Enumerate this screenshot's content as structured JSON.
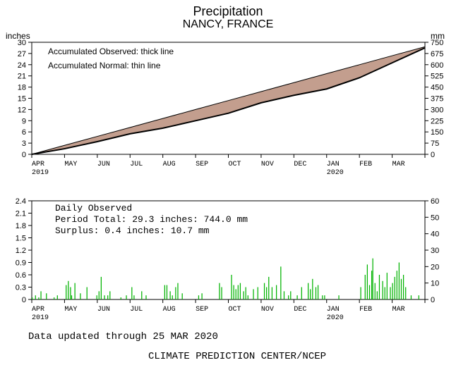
{
  "title": "Precipitation",
  "subtitle": "NANCY, FRANCE",
  "top_chart": {
    "type": "area",
    "left_axis_label": "inches",
    "right_axis_label": "mm",
    "left_ticks": [
      0,
      3,
      6,
      9,
      12,
      15,
      18,
      21,
      24,
      27,
      30
    ],
    "right_ticks": [
      0,
      75,
      150,
      225,
      300,
      375,
      450,
      525,
      600,
      675,
      750
    ],
    "x_labels": [
      "APR",
      "MAY",
      "JUN",
      "JUL",
      "AUG",
      "SEP",
      "OCT",
      "NOV",
      "DEC",
      "JAN",
      "FEB",
      "MAR"
    ],
    "x_year_labels": {
      "0": "2019",
      "9": "2020"
    },
    "legend_thick": "Accumulated Observed: thick line",
    "legend_thin": "Accumulated Normal: thin line",
    "normal_line": [
      0,
      2.4,
      4.8,
      7.2,
      9.6,
      12,
      14.4,
      16.8,
      19.2,
      21.6,
      24,
      26.4,
      28.8
    ],
    "observed_line": [
      0,
      1.5,
      3.4,
      5.5,
      7.0,
      9.0,
      11.0,
      13.8,
      15.8,
      17.5,
      20.5,
      24.5,
      28.5,
      29.3
    ],
    "deficit_fill": "#c39e8e",
    "surplus_fill": "#90c78a",
    "normal_color": "#000000",
    "observed_color": "#000000",
    "observed_width": 2,
    "normal_width": 1,
    "background": "#ffffff",
    "border_color": "#000000"
  },
  "bottom_chart": {
    "type": "bar",
    "left_axis_label_ticks": [
      0,
      0.3,
      0.6,
      0.9,
      1.2,
      1.5,
      1.8,
      2.1,
      2.4
    ],
    "right_axis_label_ticks": [
      0,
      10,
      20,
      30,
      40,
      50,
      60
    ],
    "x_labels": [
      "APR",
      "MAY",
      "JUN",
      "JUL",
      "AUG",
      "SEP",
      "OCT",
      "NOV",
      "DEC",
      "JAN",
      "FEB",
      "MAR"
    ],
    "x_year_labels": {
      "0": "2019",
      "9": "2020"
    },
    "annot_header": "Daily Observed",
    "annot_line1": "Period Total:   29.3 inches:   744.0 mm",
    "annot_line2": "Surplus:     0.4 inches:    10.7 mm",
    "bar_color": "#00b300",
    "background": "#ffffff",
    "border_color": "#000000",
    "daily_values": [
      0.05,
      0,
      0,
      0.1,
      0,
      0,
      0.05,
      0,
      0.2,
      0,
      0,
      0,
      0,
      0.15,
      0,
      0,
      0,
      0,
      0,
      0,
      0.05,
      0,
      0,
      0.1,
      0,
      0,
      0,
      0,
      0,
      0,
      0,
      0.35,
      0,
      0.45,
      0,
      0.3,
      0.1,
      0,
      0,
      0.4,
      0,
      0,
      0,
      0,
      0.15,
      0,
      0,
      0,
      0,
      0,
      0.3,
      0,
      0,
      0,
      0,
      0,
      0,
      0,
      0,
      0.1,
      0,
      0.2,
      0,
      0.55,
      0,
      0,
      0.1,
      0,
      0,
      0.1,
      0,
      0.2,
      0,
      0,
      0,
      0,
      0,
      0,
      0,
      0,
      0,
      0.05,
      0,
      0,
      0,
      0,
      0.1,
      0,
      0,
      0,
      0,
      0.3,
      0,
      0.1,
      0,
      0,
      0,
      0,
      0,
      0,
      0.2,
      0,
      0,
      0,
      0.1,
      0,
      0,
      0,
      0,
      0,
      0,
      0,
      0,
      0,
      0,
      0,
      0,
      0,
      0,
      0,
      0,
      0.35,
      0,
      0.35,
      0,
      0,
      0.2,
      0,
      0.1,
      0,
      0,
      0.3,
      0,
      0.4,
      0,
      0,
      0,
      0.15,
      0,
      0,
      0,
      0,
      0,
      0,
      0,
      0,
      0,
      0,
      0,
      0,
      0,
      0,
      0.1,
      0,
      0,
      0.15,
      0,
      0,
      0,
      0,
      0,
      0,
      0,
      0,
      0,
      0,
      0,
      0,
      0,
      0,
      0,
      0.4,
      0,
      0.3,
      0,
      0,
      0,
      0,
      0,
      0,
      0,
      0,
      0.6,
      0,
      0.35,
      0,
      0.25,
      0,
      0.35,
      0,
      0.4,
      0,
      0,
      0.2,
      0,
      0.3,
      0,
      0.1,
      0,
      0,
      0,
      0,
      0.25,
      0,
      0,
      0,
      0.3,
      0,
      0,
      0,
      0,
      0,
      0.4,
      0,
      0.3,
      0,
      0.55,
      0,
      0,
      0.3,
      0,
      0,
      0,
      0.35,
      0,
      0,
      0,
      0.8,
      0,
      0,
      0.2,
      0,
      0,
      0,
      0.1,
      0,
      0.2,
      0,
      0,
      0,
      0,
      0,
      0.1,
      0,
      0,
      0,
      0.3,
      0,
      0,
      0,
      0,
      0,
      0.4,
      0,
      0.25,
      0,
      0.5,
      0,
      0,
      0.3,
      0,
      0.35,
      0,
      0,
      0,
      0.1,
      0,
      0.1,
      0,
      0,
      0,
      0,
      0,
      0,
      0,
      0,
      0,
      0,
      0,
      0,
      0.1,
      0,
      0,
      0,
      0,
      0,
      0,
      0,
      0,
      0,
      0,
      0,
      0,
      0,
      0,
      0,
      0,
      0,
      0,
      0,
      0.3,
      0,
      0,
      0,
      0.6,
      0,
      0.85,
      0,
      0.35,
      0,
      0.7,
      1.0,
      0,
      0.4,
      0,
      0.2,
      0,
      0.6,
      0,
      0,
      0.45,
      0,
      0.3,
      0,
      0.65,
      0,
      0,
      0.3,
      0,
      0.4,
      0,
      0.55,
      0,
      0.7,
      0,
      0.9,
      0,
      0.5,
      0,
      0.6,
      0,
      0.3,
      0,
      0,
      0,
      0,
      0.1,
      0,
      0,
      0,
      0,
      0,
      0,
      0.1,
      0,
      0,
      0,
      0,
      0
    ]
  },
  "footer_date": "Data updated through 25 MAR 2020",
  "footer_source": "CLIMATE PREDICTION CENTER/NCEP"
}
